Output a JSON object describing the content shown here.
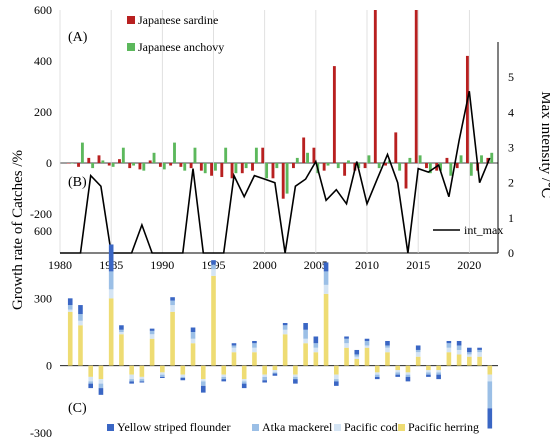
{
  "colors": {
    "sardine": "#b82020",
    "sardine_dark": "#7a2a10",
    "anchovy": "#5cb85c",
    "anchovy_dark": "#3a8a3a",
    "int_max": "#000000",
    "flounder": "#3a66c4",
    "atka": "#9bbfe6",
    "cod": "#d4e4f4",
    "herring": "#eedc73"
  },
  "axis_titles": {
    "left": "Growth rate of Catches /%",
    "right": "Max intensity /℃"
  },
  "panel_labels": {
    "a": "(A)",
    "b": "(B)",
    "c": "(C)"
  },
  "chart_data": [
    {
      "type": "bar",
      "panel": "(A)",
      "x": [
        1981,
        1982,
        1983,
        1984,
        1985,
        1986,
        1987,
        1988,
        1989,
        1990,
        1991,
        1992,
        1993,
        1994,
        1995,
        1996,
        1997,
        1998,
        1999,
        2000,
        2001,
        2002,
        2003,
        2004,
        2005,
        2006,
        2007,
        2008,
        2009,
        2010,
        2011,
        2012,
        2013,
        2014,
        2015,
        2016,
        2017,
        2018,
        2019,
        2020,
        2021,
        2022
      ],
      "ylim": [
        -200,
        600
      ],
      "yticks": [
        -200,
        0,
        200,
        400,
        600
      ],
      "series": [
        {
          "name": "Japanese sardine",
          "values": [
            0,
            -15,
            20,
            30,
            -10,
            15,
            -20,
            -25,
            10,
            -15,
            -10,
            -15,
            -20,
            -30,
            -50,
            -55,
            -60,
            -40,
            -30,
            60,
            -60,
            -140,
            -20,
            100,
            60,
            -30,
            380,
            -50,
            -30,
            -20,
            600,
            -10,
            120,
            -100,
            600,
            -20,
            -30,
            20,
            -20,
            420,
            -30,
            20
          ]
        },
        {
          "name": "Japanese anchovy",
          "values": [
            0,
            80,
            -20,
            10,
            -15,
            60,
            -10,
            -30,
            40,
            -25,
            80,
            -30,
            60,
            -40,
            -30,
            60,
            -40,
            -20,
            60,
            -60,
            -20,
            -120,
            20,
            40,
            -40,
            -10,
            -20,
            10,
            -20,
            30,
            -20,
            10,
            -30,
            20,
            30,
            -40,
            -30,
            -50,
            30,
            -50,
            30,
            40
          ]
        }
      ]
    },
    {
      "type": "line",
      "panel": "(B)",
      "x": [
        1980,
        1981,
        1982,
        1983,
        1984,
        1985,
        1986,
        1987,
        1988,
        1989,
        1990,
        1991,
        1992,
        1993,
        1994,
        1995,
        1996,
        1997,
        1998,
        1999,
        2000,
        2001,
        2002,
        2003,
        2004,
        2005,
        2006,
        2007,
        2008,
        2009,
        2010,
        2011,
        2012,
        2013,
        2014,
        2015,
        2016,
        2017,
        2018,
        2019,
        2020,
        2021,
        2022
      ],
      "xlim": [
        1980,
        2022
      ],
      "xticks": [
        1980,
        1985,
        1990,
        1995,
        2000,
        2005,
        2010,
        2015,
        2020
      ],
      "ylim": [
        0,
        6
      ],
      "yticks": [
        0,
        1,
        2,
        3,
        4,
        5
      ],
      "series": [
        {
          "name": "int_max",
          "values": [
            0,
            0,
            0,
            2.2,
            1.9,
            0,
            0,
            0,
            0.8,
            0,
            0,
            0,
            0,
            2.4,
            0,
            0,
            0,
            2.2,
            1.6,
            2.2,
            2.1,
            2.0,
            0,
            1.9,
            2.1,
            2.6,
            1.5,
            1.8,
            1.4,
            2.6,
            1.4,
            2.1,
            2.8,
            2.0,
            0,
            2.4,
            2.3,
            2.5,
            1.6,
            3.2,
            4.6,
            2.0,
            2.7
          ]
        }
      ]
    },
    {
      "type": "bar",
      "stacked": true,
      "panel": "(C)",
      "x": [
        1981,
        1982,
        1983,
        1984,
        1985,
        1986,
        1987,
        1988,
        1989,
        1990,
        1991,
        1992,
        1993,
        1994,
        1995,
        1996,
        1997,
        1998,
        1999,
        2000,
        2001,
        2002,
        2003,
        2004,
        2005,
        2006,
        2007,
        2008,
        2009,
        2010,
        2011,
        2012,
        2013,
        2014,
        2015,
        2016,
        2017,
        2018,
        2019,
        2020,
        2021,
        2022
      ],
      "ylim": [
        -300,
        600
      ],
      "yticks": [
        -300,
        0,
        300,
        600
      ],
      "series": [
        {
          "name": "Yellow striped flounder",
          "values": [
            30,
            40,
            -20,
            -30,
            120,
            20,
            -10,
            -5,
            10,
            -5,
            15,
            -10,
            20,
            -30,
            20,
            -10,
            10,
            -20,
            10,
            -10,
            -10,
            10,
            -20,
            30,
            30,
            40,
            -20,
            10,
            20,
            10,
            -10,
            20,
            -10,
            -20,
            20,
            -10,
            -20,
            10,
            20,
            20,
            10,
            -90
          ]
        },
        {
          "name": "Atka mackerel",
          "values": [
            20,
            30,
            -10,
            -20,
            80,
            10,
            -10,
            -10,
            15,
            -10,
            20,
            -5,
            30,
            -20,
            20,
            -10,
            10,
            -10,
            20,
            -15,
            -5,
            20,
            -10,
            40,
            20,
            60,
            -10,
            20,
            10,
            20,
            -10,
            10,
            -10,
            -10,
            10,
            -10,
            -10,
            20,
            20,
            10,
            10,
            -120
          ]
        },
        {
          "name": "Pacific cod",
          "values": [
            10,
            20,
            -20,
            -20,
            40,
            10,
            -20,
            -10,
            20,
            -10,
            30,
            -10,
            20,
            -10,
            30,
            -10,
            20,
            -10,
            20,
            -10,
            -10,
            20,
            -10,
            20,
            20,
            40,
            -20,
            20,
            10,
            10,
            -10,
            20,
            -10,
            -10,
            20,
            -10,
            -10,
            20,
            20,
            10,
            20,
            -30
          ]
        },
        {
          "name": "Pacific herring",
          "values": [
            240,
            180,
            -50,
            -60,
            300,
            140,
            -40,
            -50,
            120,
            -30,
            240,
            -40,
            100,
            -60,
            400,
            -40,
            60,
            -60,
            60,
            -40,
            -20,
            140,
            -40,
            100,
            60,
            320,
            -40,
            80,
            30,
            80,
            -30,
            60,
            -20,
            -30,
            40,
            -20,
            -20,
            60,
            50,
            40,
            40,
            -40
          ]
        }
      ]
    }
  ],
  "ticks": {
    "a_y": [
      "600",
      "400",
      "200",
      "0",
      "-200"
    ],
    "c_y": [
      "600",
      "300",
      "0",
      "-300"
    ],
    "b_y2": [
      "5",
      "4",
      "3",
      "2",
      "1",
      "0"
    ],
    "b_x": [
      "1980",
      "1985",
      "1990",
      "1995",
      "2000",
      "2005",
      "2010",
      "2015",
      "2020"
    ]
  }
}
